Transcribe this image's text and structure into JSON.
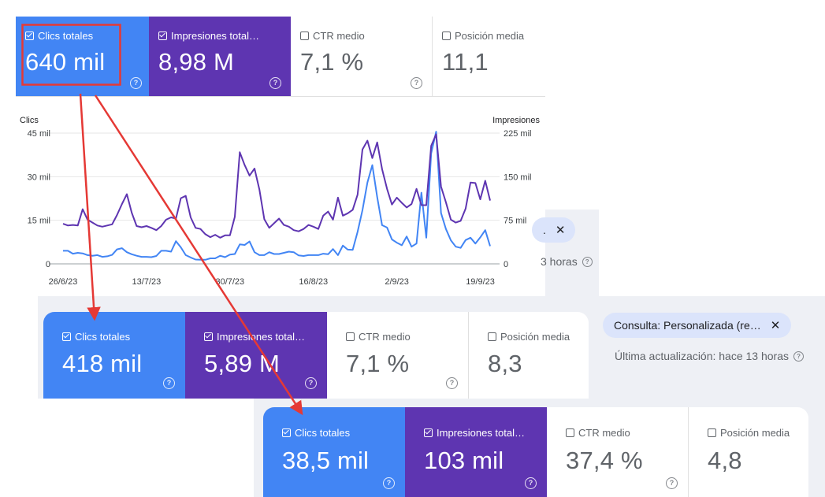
{
  "panel1": {
    "cards": [
      {
        "label": "Clics totales",
        "value": "640 mil",
        "checked": true
      },
      {
        "label": "Impresiones total…",
        "value": "8,98 M",
        "checked": true
      },
      {
        "label": "CTR medio",
        "value": "7,1 %",
        "checked": false
      },
      {
        "label": "Posición media",
        "value": "11,1",
        "checked": false
      }
    ],
    "help_glyph": "?"
  },
  "panel2": {
    "cards": [
      {
        "label": "Clics totales",
        "value": "418 mil",
        "checked": true
      },
      {
        "label": "Impresiones total…",
        "value": "5,89 M",
        "checked": true
      },
      {
        "label": "CTR medio",
        "value": "7,1 %",
        "checked": false
      },
      {
        "label": "Posición media",
        "value": "8,3",
        "checked": false
      }
    ],
    "chip": "Consulta: Personalizada (re…",
    "chip_close": "✕",
    "updated": "Última actualización: hace 13 horas"
  },
  "panel3": {
    "cards": [
      {
        "label": "Clics totales",
        "value": "38,5 mil",
        "checked": true
      },
      {
        "label": "Impresiones total…",
        "value": "103 mil",
        "checked": true
      },
      {
        "label": "CTR medio",
        "value": "37,4 %",
        "checked": false
      },
      {
        "label": "Posición media",
        "value": "4,8",
        "checked": false
      }
    ]
  },
  "behind_fragments": {
    "chip_partial": ".",
    "chip_close": "✕",
    "updated_partial": "3 horas"
  },
  "colors": {
    "clicks": "#4285f4",
    "impressions": "#5e35b1",
    "highlight": "#e53935",
    "arrow": "#e53935"
  },
  "chart_data": {
    "type": "line",
    "y_left_title": "Clics",
    "y_right_title": "Impresiones",
    "y_left_ticks": [
      "0",
      "15 mil",
      "30 mil",
      "45 mil"
    ],
    "y_right_ticks": [
      "0",
      "75 mil",
      "150 mil",
      "225 mil"
    ],
    "ylim_left": [
      0,
      45000
    ],
    "ylim_right": [
      0,
      225000
    ],
    "x_tick_labels": [
      "26/6/23",
      "13/7/23",
      "30/7/23",
      "16/8/23",
      "2/9/23",
      "19/9/23"
    ],
    "grid": true,
    "series": [
      {
        "name": "Clics",
        "axis": "left",
        "values": [
          4500,
          4500,
          3500,
          3800,
          3600,
          3000,
          2800,
          3000,
          2400,
          2600,
          3100,
          5000,
          5400,
          4000,
          3300,
          2800,
          2400,
          2400,
          2300,
          2700,
          4500,
          4500,
          4200,
          7800,
          5700,
          3000,
          2200,
          1500,
          1400,
          1400,
          1900,
          1900,
          2800,
          2300,
          3200,
          3400,
          6700,
          6500,
          7700,
          4000,
          3000,
          3000,
          4000,
          3400,
          3400,
          3800,
          4200,
          4000,
          2900,
          2700,
          3000,
          3000,
          3000,
          3500,
          3300,
          5100,
          3000,
          6300,
          4900,
          4800,
          11000,
          18500,
          28000,
          34000,
          23000,
          13300,
          12500,
          8400,
          7300,
          6400,
          9400,
          5900,
          7000,
          24500,
          9000,
          38000,
          45500,
          17500,
          12000,
          8100,
          5900,
          5500,
          8200,
          9000,
          7000,
          9100,
          11600,
          6100
        ]
      },
      {
        "name": "Impresiones",
        "axis": "right",
        "values": [
          69000,
          66000,
          67000,
          66000,
          94000,
          76000,
          71000,
          66000,
          64000,
          66000,
          68000,
          84000,
          103000,
          120000,
          88000,
          65000,
          63000,
          65000,
          62000,
          58000,
          65000,
          76000,
          80000,
          78000,
          113000,
          117000,
          80000,
          62000,
          60000,
          51000,
          46000,
          50000,
          45000,
          49000,
          49000,
          81000,
          192000,
          170000,
          152000,
          164000,
          128000,
          77000,
          62000,
          70000,
          78000,
          67000,
          64000,
          58000,
          56000,
          60000,
          67000,
          64000,
          60000,
          83000,
          90000,
          76000,
          114000,
          83000,
          87000,
          93000,
          119000,
          197000,
          212000,
          182000,
          209000,
          163000,
          129000,
          102000,
          114000,
          105000,
          97000,
          103000,
          129000,
          101000,
          101000,
          203000,
          223000,
          133000,
          106000,
          76000,
          71000,
          74000,
          95000,
          140000,
          139000,
          111000,
          143000,
          109000
        ]
      }
    ]
  }
}
